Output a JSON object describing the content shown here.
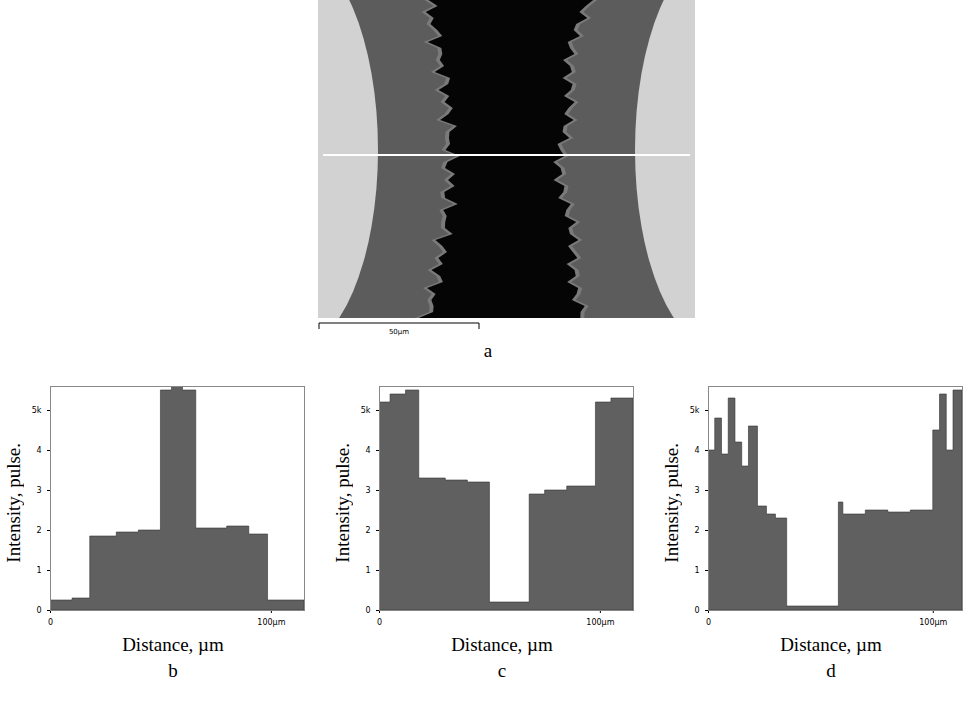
{
  "image": {
    "panel": "a",
    "scale_bar": "50µm"
  },
  "chart_data": [
    {
      "type": "area",
      "panel": "b",
      "xlabel": "Distance, µm",
      "ylabel": "Intensity, pulse.",
      "x": [
        0,
        10,
        18,
        30,
        40,
        50,
        55,
        60,
        66,
        80,
        90,
        98.5,
        115
      ],
      "values": [
        0.25,
        0.3,
        1.85,
        1.95,
        2.0,
        5.5,
        5.6,
        5.5,
        2.05,
        2.1,
        1.9,
        0.25,
        0.25
      ],
      "xlim": [
        0,
        115
      ],
      "xticks": [
        0,
        {
          "value": 100,
          "label": "100µm"
        }
      ],
      "ylim": [
        0,
        5.6
      ],
      "yticks": [
        0,
        1,
        2,
        3,
        4,
        {
          "value": 5,
          "label": "5k"
        }
      ],
      "color": "#606060"
    },
    {
      "type": "area",
      "panel": "c",
      "xlabel": "Distance, µm",
      "ylabel": "Intensity, pulse.",
      "x": [
        0,
        5,
        12,
        18,
        30,
        40,
        50,
        68,
        75,
        85,
        98,
        105,
        115
      ],
      "values": [
        5.2,
        5.4,
        5.5,
        3.3,
        3.25,
        3.2,
        0.2,
        2.9,
        3.0,
        3.1,
        5.2,
        5.3,
        5.3
      ],
      "xlim": [
        0,
        115
      ],
      "xticks": [
        0,
        {
          "value": 100,
          "label": "100µm"
        }
      ],
      "ylim": [
        0,
        5.6
      ],
      "yticks": [
        0,
        1,
        2,
        3,
        4,
        {
          "value": 5,
          "label": "5k"
        }
      ],
      "color": "#606060"
    },
    {
      "type": "area",
      "panel": "d",
      "xlabel": "Distance, µm",
      "ylabel": "Intensity, pulse.",
      "x": [
        0,
        3,
        6,
        9,
        12,
        15,
        18,
        22,
        26,
        30,
        35,
        58,
        60,
        70,
        80,
        90,
        100,
        103,
        106,
        109,
        113
      ],
      "values": [
        4.0,
        4.8,
        3.9,
        5.3,
        4.2,
        3.6,
        4.6,
        2.6,
        2.4,
        2.3,
        0.1,
        2.7,
        2.4,
        2.5,
        2.45,
        2.5,
        4.5,
        5.4,
        4.0,
        5.5,
        5.5
      ],
      "xlim": [
        0,
        113
      ],
      "xticks": [
        0,
        {
          "value": 100,
          "label": "100µm"
        }
      ],
      "ylim": [
        0,
        5.6
      ],
      "yticks": [
        0,
        1,
        2,
        3,
        4,
        {
          "value": 5,
          "label": "5k"
        }
      ],
      "color": "#606060"
    }
  ]
}
